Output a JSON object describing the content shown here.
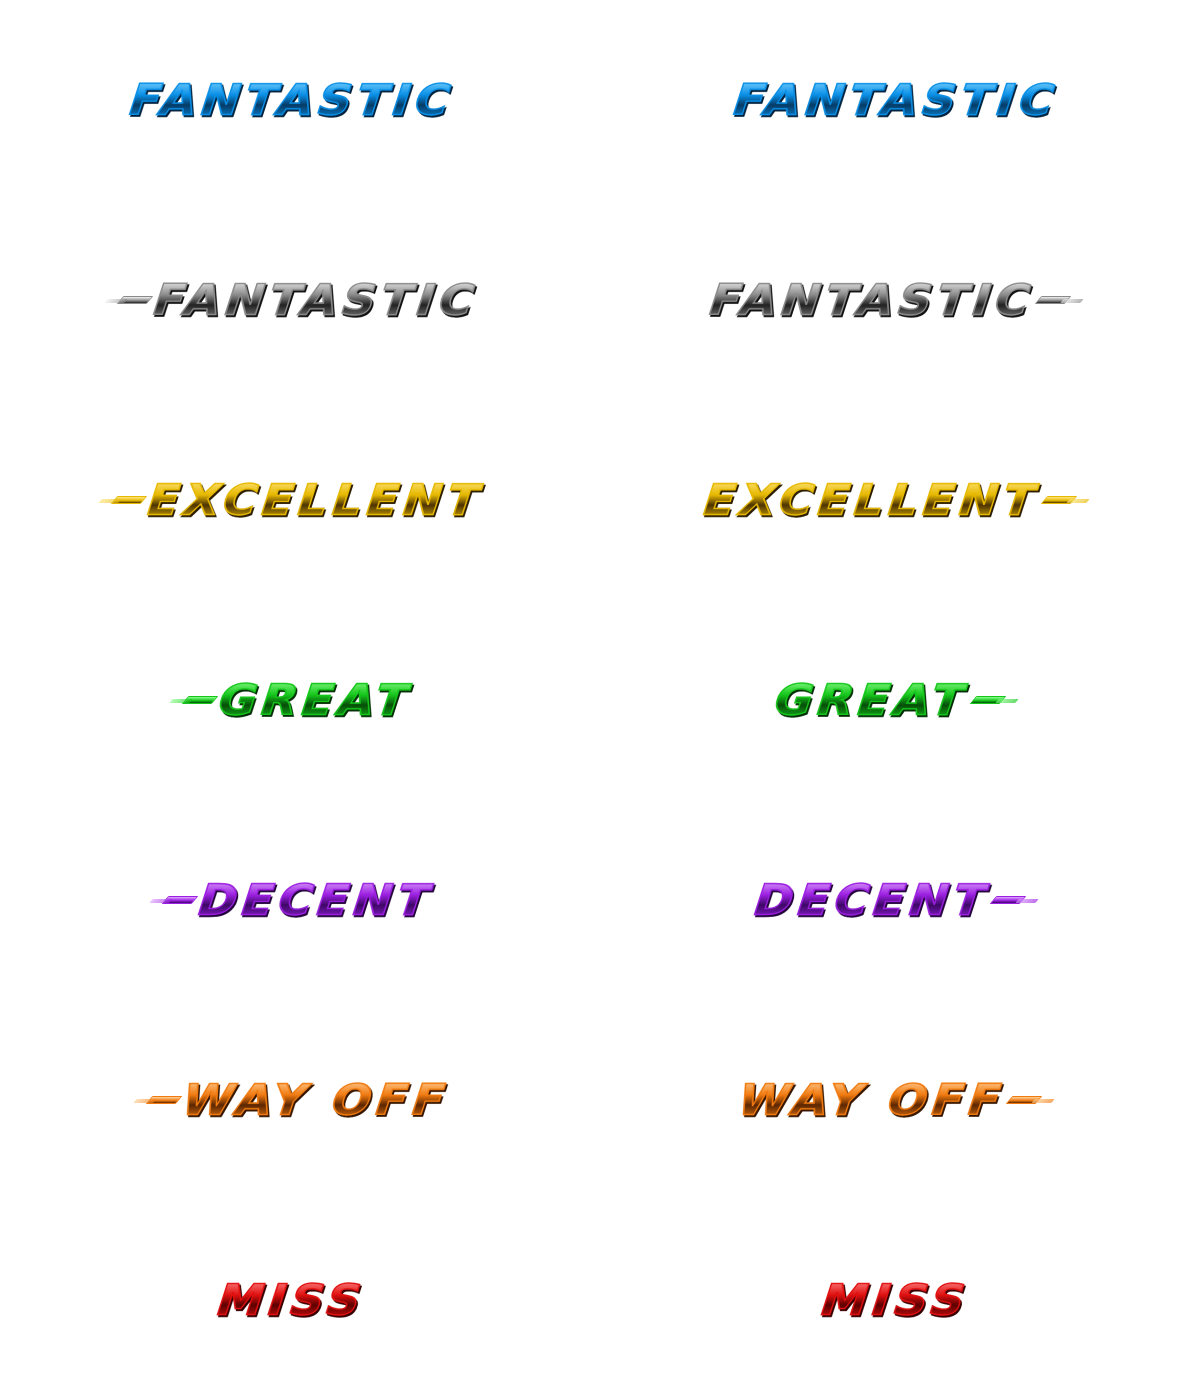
{
  "judgments": [
    {
      "id": "fantastic-blue",
      "label": "FANTASTIC",
      "colors": {
        "main": "#0a8fe6",
        "hi": "#7fd4ff",
        "dark": "#053b66",
        "shade": "#03223d"
      },
      "left_variant": {
        "dash_left": false,
        "dash_right": false
      },
      "right_variant": {
        "dash_left": false,
        "dash_right": false
      }
    },
    {
      "id": "fantastic-white",
      "label": "FANTASTIC",
      "colors": {
        "main": "#8a8a8a",
        "hi": "#f2f2f2",
        "dark": "#222222",
        "shade": "#111111"
      },
      "left_variant": {
        "dash_left": true,
        "dash_right": false
      },
      "right_variant": {
        "dash_left": false,
        "dash_right": true
      }
    },
    {
      "id": "excellent",
      "label": "EXCELLENT",
      "colors": {
        "main": "#e6b800",
        "hi": "#ffe680",
        "dark": "#4d3300",
        "shade": "#2b1c00"
      },
      "left_variant": {
        "dash_left": true,
        "dash_right": false
      },
      "right_variant": {
        "dash_left": false,
        "dash_right": true
      }
    },
    {
      "id": "great",
      "label": "GREAT",
      "colors": {
        "main": "#16c61b",
        "hi": "#8cff8c",
        "dark": "#064d09",
        "shade": "#032e05"
      },
      "left_variant": {
        "dash_left": true,
        "dash_right": false
      },
      "right_variant": {
        "dash_left": false,
        "dash_right": true
      }
    },
    {
      "id": "decent",
      "label": "DECENT",
      "colors": {
        "main": "#9b1fe0",
        "hi": "#e0a6ff",
        "dark": "#3d0866",
        "shade": "#23043b"
      },
      "left_variant": {
        "dash_left": true,
        "dash_right": false
      },
      "right_variant": {
        "dash_left": false,
        "dash_right": true
      }
    },
    {
      "id": "way-off",
      "label": "WAY OFF",
      "colors": {
        "main": "#f07a10",
        "hi": "#ffd199",
        "dark": "#5c2600",
        "shade": "#361600"
      },
      "left_variant": {
        "dash_left": true,
        "dash_right": false
      },
      "right_variant": {
        "dash_left": false,
        "dash_right": true
      }
    },
    {
      "id": "miss",
      "label": "MISS",
      "colors": {
        "main": "#e01010",
        "hi": "#ff8a8a",
        "dark": "#5c0000",
        "shade": "#360000"
      },
      "left_variant": {
        "dash_left": false,
        "dash_right": false
      },
      "right_variant": {
        "dash_left": false,
        "dash_right": false
      }
    }
  ]
}
